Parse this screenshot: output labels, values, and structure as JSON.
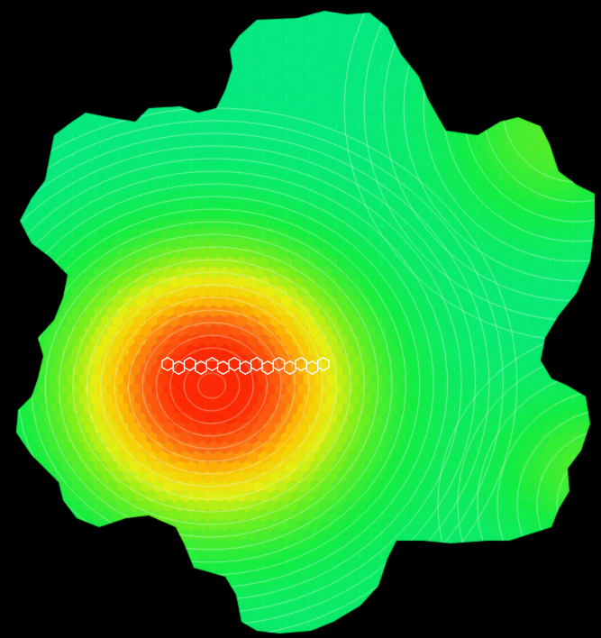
{
  "scene": {
    "subject": "hexagonal-grid-heatmap",
    "background_color": "#000000",
    "grid_line_color": "#7cff9a",
    "contour_color": "#e8ffe8",
    "marker_color": "#ffffff"
  },
  "color_scale": {
    "stops": [
      {
        "level": 0.0,
        "color": "#00e890"
      },
      {
        "level": 0.2,
        "color": "#10ee40"
      },
      {
        "level": 0.4,
        "color": "#7cf018"
      },
      {
        "level": 0.55,
        "color": "#e6f010"
      },
      {
        "level": 0.7,
        "color": "#ffc000"
      },
      {
        "level": 0.85,
        "color": "#ff6a10"
      },
      {
        "level": 1.0,
        "color": "#ff2800"
      }
    ]
  },
  "field": {
    "peak_level": 1.0,
    "secondary_level": 0.28,
    "contour_count": 22
  },
  "highlight_row": {
    "cell_count": 15
  }
}
